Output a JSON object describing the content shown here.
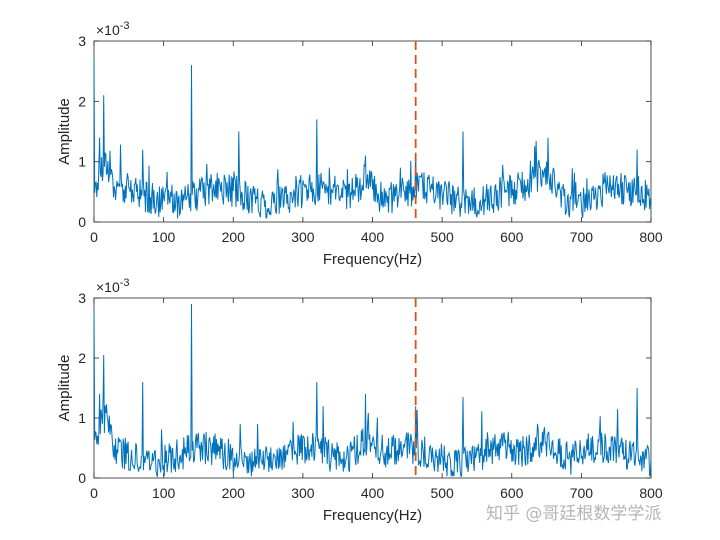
{
  "watermark": "知乎 @哥廷根数学学派",
  "chart_data": [
    {
      "type": "line",
      "xlabel": "Frequency(Hz)",
      "ylabel": "Amplitude",
      "exponent_base": "×10",
      "exponent_power": "-3",
      "xlim": [
        0,
        800
      ],
      "ylim": [
        0,
        3
      ],
      "xticks": [
        0,
        100,
        200,
        300,
        400,
        500,
        600,
        700,
        800
      ],
      "yticks": [
        0,
        1,
        2,
        3
      ],
      "marker_line_x": 462,
      "series_color": "#0072BD",
      "marker_color": "#D95319",
      "baseline": 0.35,
      "peaks": [
        {
          "x": 0,
          "y": 2.7
        },
        {
          "x": 8,
          "y": 1.4
        },
        {
          "x": 14,
          "y": 2.1
        },
        {
          "x": 70,
          "y": 1.2
        },
        {
          "x": 140,
          "y": 2.6
        },
        {
          "x": 208,
          "y": 1.5
        },
        {
          "x": 320,
          "y": 1.7
        },
        {
          "x": 390,
          "y": 1.1
        },
        {
          "x": 462,
          "y": 1.15
        },
        {
          "x": 530,
          "y": 1.5
        },
        {
          "x": 650,
          "y": 1.0
        },
        {
          "x": 780,
          "y": 1.2
        }
      ]
    },
    {
      "type": "line",
      "xlabel": "Frequency(Hz)",
      "ylabel": "Amplitude",
      "exponent_base": "×10",
      "exponent_power": "-3",
      "xlim": [
        0,
        800
      ],
      "ylim": [
        0,
        3
      ],
      "xticks": [
        0,
        100,
        200,
        300,
        400,
        500,
        600,
        700,
        800
      ],
      "yticks": [
        0,
        1,
        2,
        3
      ],
      "marker_line_x": 462,
      "series_color": "#0072BD",
      "marker_color": "#D95319",
      "baseline": 0.3,
      "peaks": [
        {
          "x": 0,
          "y": 2.8
        },
        {
          "x": 8,
          "y": 1.4
        },
        {
          "x": 14,
          "y": 2.05
        },
        {
          "x": 70,
          "y": 1.6
        },
        {
          "x": 140,
          "y": 2.9
        },
        {
          "x": 210,
          "y": 0.9
        },
        {
          "x": 235,
          "y": 0.9
        },
        {
          "x": 320,
          "y": 1.6
        },
        {
          "x": 390,
          "y": 1.4
        },
        {
          "x": 462,
          "y": 1.2
        },
        {
          "x": 530,
          "y": 1.35
        },
        {
          "x": 780,
          "y": 1.5
        }
      ]
    }
  ]
}
